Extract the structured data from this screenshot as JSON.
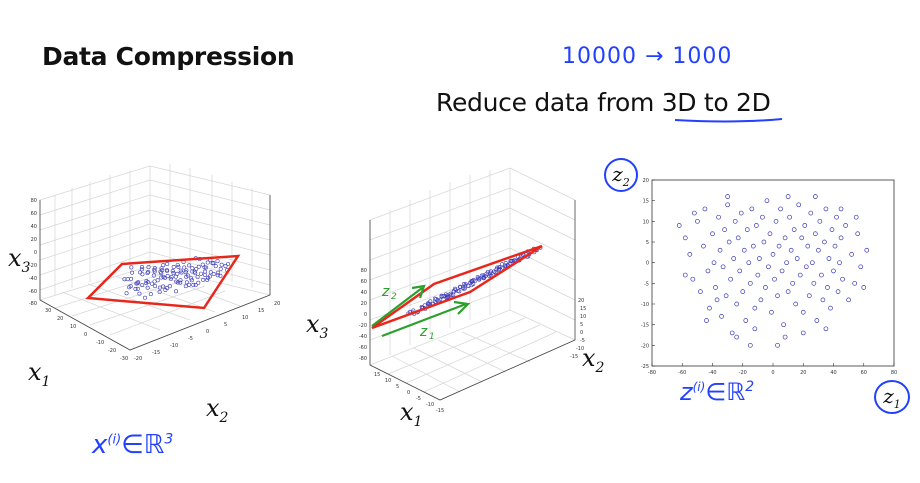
{
  "slide": {
    "title": "Data Compression",
    "subtitle_prefix": "Reduce data from ",
    "subtitle_emph": "3D to 2D",
    "annotation_top": "10000 → 1000",
    "annotation_x": "x",
    "annotation_x_sup": "(i)",
    "annotation_x_set": "∈ℝ",
    "annotation_x_pow": "3",
    "annotation_z": "z",
    "annotation_z_sup": "(i)",
    "annotation_z_set": "∈ℝ",
    "annotation_z_pow": "2",
    "annotation_z1": "z",
    "annotation_z1_sub": "1",
    "annotation_z2": "z",
    "annotation_z2_sub": "2"
  },
  "plot3d_left": {
    "labels": {
      "x3": "x",
      "x3_sub": "3",
      "x1": "x",
      "x1_sub": "1",
      "x2": "x",
      "x2_sub": "2"
    },
    "z_ticks": [
      "80",
      "60",
      "40",
      "20",
      "0",
      "-20",
      "-40",
      "-60",
      "-80"
    ],
    "x1_ticks": [
      "30",
      "20",
      "10",
      "0",
      "-10",
      "-20",
      "-30"
    ],
    "x2_ticks": [
      "-20",
      "-15",
      "-10",
      "-5",
      "0",
      "5",
      "10",
      "15",
      "20"
    ]
  },
  "plot3d_right": {
    "labels": {
      "x3": "x",
      "x3_sub": "3",
      "x1": "x",
      "x1_sub": "1",
      "x2": "x",
      "x2_sub": "2"
    },
    "z_ticks": [
      "80",
      "60",
      "40",
      "20",
      "0",
      "-20",
      "-40",
      "-60",
      "-80"
    ],
    "x1_ticks": [
      "15",
      "10",
      "5",
      "0",
      "-5",
      "-10",
      "-15"
    ],
    "x2_ticks": [
      "20",
      "15",
      "10",
      "5",
      "0",
      "-5",
      "-10",
      "-15"
    ]
  },
  "chart_data": {
    "type": "scatter",
    "title": "",
    "xlabel": "z1",
    "ylabel": "z2",
    "xlim": [
      -80,
      80
    ],
    "ylim": [
      -25,
      20
    ],
    "x_ticks": [
      -80,
      -60,
      -40,
      -20,
      0,
      20,
      40,
      60,
      80
    ],
    "y_ticks": [
      20,
      15,
      10,
      5,
      0,
      -5,
      -10,
      -15,
      -20,
      -25
    ],
    "marker": "open-circle",
    "color": "#3a3ab8",
    "points": [
      [
        -62,
        9
      ],
      [
        -58,
        6
      ],
      [
        -55,
        2
      ],
      [
        -53,
        -4
      ],
      [
        -50,
        10
      ],
      [
        -48,
        -7
      ],
      [
        -46,
        4
      ],
      [
        -45,
        13
      ],
      [
        -43,
        -2
      ],
      [
        -42,
        -11
      ],
      [
        -40,
        7
      ],
      [
        -39,
        0
      ],
      [
        -38,
        -6
      ],
      [
        -36,
        11
      ],
      [
        -35,
        3
      ],
      [
        -34,
        -13
      ],
      [
        -33,
        -1
      ],
      [
        -32,
        8
      ],
      [
        -31,
        -8
      ],
      [
        -30,
        14
      ],
      [
        -29,
        5
      ],
      [
        -28,
        -4
      ],
      [
        -27,
        -17
      ],
      [
        -26,
        1
      ],
      [
        -25,
        10
      ],
      [
        -24,
        -10
      ],
      [
        -23,
        6
      ],
      [
        -22,
        -2
      ],
      [
        -21,
        12
      ],
      [
        -20,
        -7
      ],
      [
        -19,
        3
      ],
      [
        -18,
        -14
      ],
      [
        -17,
        8
      ],
      [
        -16,
        0
      ],
      [
        -15,
        -5
      ],
      [
        -14,
        13
      ],
      [
        -13,
        4
      ],
      [
        -12,
        -11
      ],
      [
        -11,
        9
      ],
      [
        -10,
        -3
      ],
      [
        -9,
        1
      ],
      [
        -8,
        -9
      ],
      [
        -7,
        11
      ],
      [
        -6,
        5
      ],
      [
        -5,
        -6
      ],
      [
        -4,
        15
      ],
      [
        -3,
        -1
      ],
      [
        -2,
        7
      ],
      [
        -1,
        -12
      ],
      [
        0,
        2
      ],
      [
        1,
        -4
      ],
      [
        2,
        10
      ],
      [
        3,
        -8
      ],
      [
        4,
        4
      ],
      [
        5,
        13
      ],
      [
        6,
        -2
      ],
      [
        7,
        -15
      ],
      [
        8,
        6
      ],
      [
        9,
        0
      ],
      [
        10,
        -7
      ],
      [
        11,
        11
      ],
      [
        12,
        3
      ],
      [
        13,
        -5
      ],
      [
        14,
        8
      ],
      [
        15,
        -10
      ],
      [
        16,
        1
      ],
      [
        17,
        14
      ],
      [
        18,
        -3
      ],
      [
        19,
        6
      ],
      [
        20,
        -12
      ],
      [
        21,
        9
      ],
      [
        22,
        -1
      ],
      [
        23,
        4
      ],
      [
        24,
        -8
      ],
      [
        25,
        12
      ],
      [
        26,
        0
      ],
      [
        27,
        -5
      ],
      [
        28,
        7
      ],
      [
        29,
        -14
      ],
      [
        30,
        3
      ],
      [
        31,
        10
      ],
      [
        32,
        -3
      ],
      [
        33,
        -9
      ],
      [
        34,
        5
      ],
      [
        35,
        13
      ],
      [
        36,
        -6
      ],
      [
        37,
        1
      ],
      [
        38,
        -11
      ],
      [
        39,
        8
      ],
      [
        40,
        -2
      ],
      [
        41,
        4
      ],
      [
        42,
        11
      ],
      [
        43,
        -7
      ],
      [
        44,
        0
      ],
      [
        45,
        6
      ],
      [
        46,
        -4
      ],
      [
        48,
        9
      ],
      [
        50,
        -9
      ],
      [
        52,
        2
      ],
      [
        54,
        -5
      ],
      [
        56,
        7
      ],
      [
        58,
        -1
      ],
      [
        60,
        -6
      ],
      [
        62,
        3
      ],
      [
        -44,
        -14
      ],
      [
        -37,
        -9
      ],
      [
        -24,
        -18
      ],
      [
        -12,
        -16
      ],
      [
        8,
        -18
      ],
      [
        20,
        -17
      ],
      [
        35,
        -16
      ],
      [
        -52,
        12
      ],
      [
        -30,
        16
      ],
      [
        10,
        16
      ],
      [
        28,
        16
      ],
      [
        45,
        13
      ],
      [
        -58,
        -3
      ],
      [
        55,
        11
      ],
      [
        -15,
        -20
      ],
      [
        3,
        -20
      ]
    ]
  }
}
